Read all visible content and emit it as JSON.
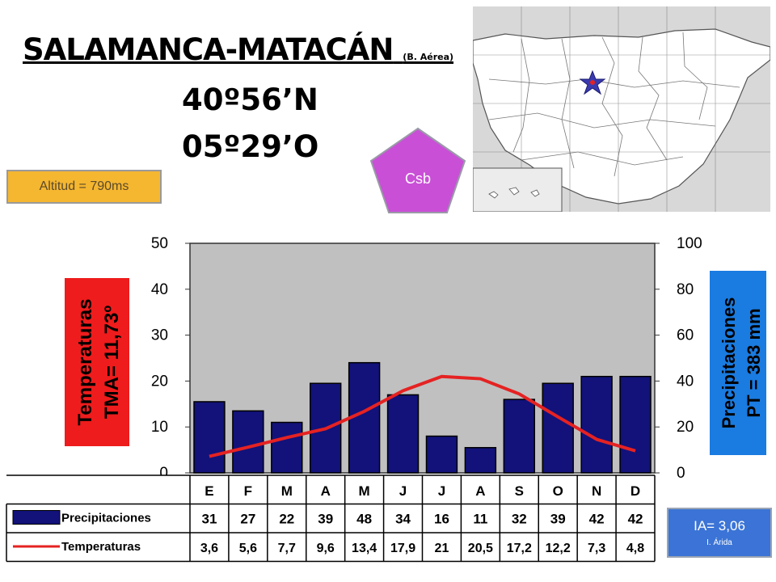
{
  "header": {
    "station": "SALAMANCA-MATACÁN",
    "station_note": "(B. Aérea)",
    "latitude": "40º56’N",
    "longitude": "05º29’O"
  },
  "altitude_label": "Altitud = 790ms",
  "climate_badge": {
    "label": "Csb",
    "color": "#c94fd6"
  },
  "aridity": {
    "value": "IA= 3,06",
    "class": "I. Árida"
  },
  "chart_data": {
    "type": "bar",
    "categories": [
      "E",
      "F",
      "M",
      "A",
      "M",
      "J",
      "J",
      "A",
      "S",
      "O",
      "N",
      "D"
    ],
    "left_axis_label": [
      "Temperaturas",
      "TMA= 11,73º"
    ],
    "right_axis_label": [
      "Precipitaciones",
      "PT = 383 mm"
    ],
    "left_ylim": [
      0,
      50
    ],
    "left_ticks": [
      "0",
      "10",
      "20",
      "30",
      "40",
      "50"
    ],
    "right_ylim": [
      0,
      100
    ],
    "right_ticks": [
      "0",
      "20",
      "40",
      "60",
      "80",
      "100"
    ],
    "grid": false,
    "series": [
      {
        "name": "Precipitaciones",
        "type": "bar",
        "axis": "right",
        "color": "#12127a",
        "values": [
          31,
          27,
          22,
          39,
          48,
          34,
          16,
          11,
          32,
          39,
          42,
          42
        ],
        "labels": [
          "31",
          "27",
          "22",
          "39",
          "48",
          "34",
          "16",
          "11",
          "32",
          "39",
          "42",
          "42"
        ]
      },
      {
        "name": "Temperaturas",
        "type": "line",
        "axis": "left",
        "color": "#e52222",
        "values": [
          3.6,
          5.6,
          7.7,
          9.6,
          13.4,
          17.9,
          21,
          20.5,
          17.2,
          12.2,
          7.3,
          4.8
        ],
        "labels": [
          "3,6",
          "5,6",
          "7,7",
          "9,6",
          "13,4",
          "17,9",
          "21",
          "20,5",
          "17,2",
          "12,2",
          "7,3",
          "4,8"
        ]
      }
    ]
  }
}
